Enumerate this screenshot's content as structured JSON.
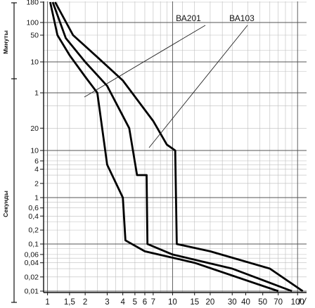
{
  "chart_data": {
    "type": "line",
    "title": "",
    "y_sections": [
      {
        "label": "Минуты",
        "ticks": [
          "180",
          "100",
          "50",
          "10",
          "1"
        ]
      },
      {
        "label": "Секунды",
        "ticks": [
          "20",
          "10",
          "6",
          "4",
          "2",
          "1",
          "0,6",
          "0,4",
          "0,2",
          "0,1",
          "0,06",
          "0,04",
          "0,02",
          "0,01"
        ]
      }
    ],
    "y_scale": "log",
    "x_scale": "log",
    "x_ticks": [
      "1",
      "1,5",
      "2",
      "3",
      "4",
      "5",
      "6",
      "7",
      "10",
      "15",
      "20",
      "30",
      "40",
      "50",
      "70",
      "100"
    ],
    "x_unit": "I /",
    "grid": true,
    "annotations": [
      "ВА201",
      "ВА103"
    ],
    "series": [
      {
        "points": [
          [
            1.05,
            10800
          ],
          [
            1.2,
            3000
          ],
          [
            1.5,
            900
          ],
          [
            2,
            200
          ],
          [
            2.5,
            60
          ],
          [
            3,
            5
          ],
          [
            4,
            1
          ],
          [
            4.2,
            0.12
          ],
          [
            6,
            0.07
          ],
          [
            15,
            0.04
          ],
          [
            70,
            0.01
          ]
        ]
      },
      {
        "points": [
          [
            1.1,
            10800
          ],
          [
            1.4,
            2500
          ],
          [
            2,
            600
          ],
          [
            3,
            100
          ],
          [
            4.5,
            20
          ],
          [
            5.2,
            3
          ],
          [
            6.2,
            3
          ],
          [
            6.3,
            0.1
          ],
          [
            10,
            0.06
          ],
          [
            30,
            0.03
          ],
          [
            90,
            0.01
          ]
        ]
      },
      {
        "points": [
          [
            1.15,
            10800
          ],
          [
            1.6,
            3000
          ],
          [
            2.5,
            800
          ],
          [
            4,
            150
          ],
          [
            7,
            25
          ],
          [
            9,
            12
          ],
          [
            10.5,
            10
          ],
          [
            10.8,
            0.1
          ],
          [
            20,
            0.07
          ],
          [
            60,
            0.03
          ],
          [
            110,
            0.01
          ]
        ]
      }
    ]
  }
}
